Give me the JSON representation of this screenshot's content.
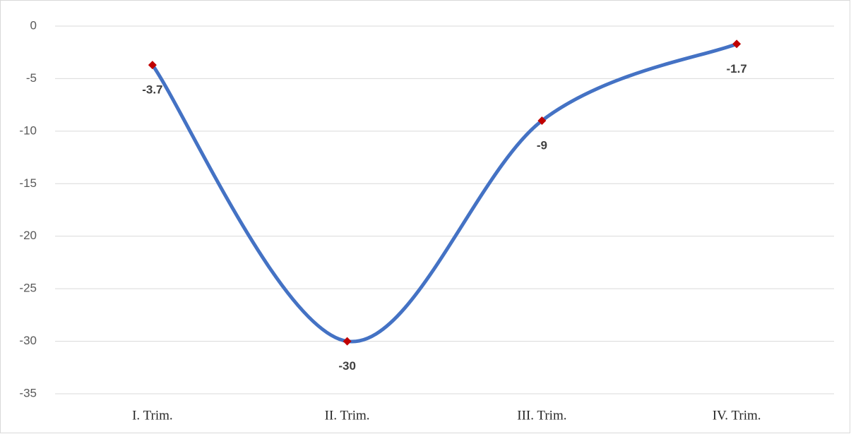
{
  "chart_data": {
    "type": "line",
    "categories": [
      "I. Trim.",
      "II. Trim.",
      "III. Trim.",
      "IV. Trim."
    ],
    "values": [
      -3.7,
      -30,
      -9,
      -1.7
    ],
    "color": "#4472c4",
    "marker_color": "#c00000",
    "ylim": [
      -35,
      0
    ],
    "yticks": [
      -35,
      -30,
      -25,
      -20,
      -15,
      -10,
      -5,
      0
    ],
    "grid": true,
    "smooth": true,
    "data_labels": true
  }
}
